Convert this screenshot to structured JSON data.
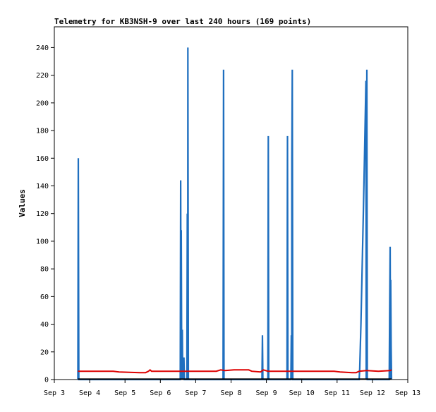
{
  "chart_data": {
    "type": "line",
    "title": "Telemetry for KB3NSH-9 over last 240 hours (169 points)",
    "xlabel": "",
    "ylabel": "Values",
    "x_tick_labels": [
      "Sep 3",
      "Sep 4",
      "Sep 5",
      "Sep 6",
      "Sep 7",
      "Sep 8",
      "Sep 9",
      "Sep 10",
      "Sep 11",
      "Sep 12",
      "Sep 13"
    ],
    "y_tick_labels": [
      "0",
      "20",
      "40",
      "60",
      "80",
      "100",
      "120",
      "140",
      "160",
      "180",
      "200",
      "220",
      "240"
    ],
    "xlim": [
      0,
      240
    ],
    "ylim": [
      0,
      255
    ],
    "grid": false,
    "legend": "none",
    "series": [
      {
        "color": "#1f6fbf",
        "style": "spikes",
        "points": [
          [
            16.0,
            0
          ],
          [
            16.3,
            160
          ],
          [
            16.6,
            0
          ],
          [
            85.5,
            0
          ],
          [
            85.8,
            144
          ],
          [
            86.1,
            0
          ],
          [
            86.2,
            108
          ],
          [
            86.5,
            0
          ],
          [
            86.9,
            36
          ],
          [
            87.2,
            0
          ],
          [
            88.0,
            16
          ],
          [
            88.3,
            0
          ],
          [
            90.0,
            0
          ],
          [
            90.3,
            120
          ],
          [
            90.6,
            0
          ],
          [
            90.7,
            240
          ],
          [
            91.0,
            0
          ],
          [
            114.6,
            0
          ],
          [
            114.9,
            224
          ],
          [
            115.2,
            0
          ],
          [
            141.0,
            0
          ],
          [
            141.3,
            32
          ],
          [
            141.6,
            0
          ],
          [
            145.0,
            0
          ],
          [
            145.3,
            176
          ],
          [
            145.6,
            0
          ],
          [
            158.0,
            0
          ],
          [
            158.3,
            176
          ],
          [
            158.6,
            0
          ],
          [
            160.6,
            0
          ],
          [
            160.9,
            32
          ],
          [
            161.2,
            0
          ],
          [
            161.3,
            160
          ],
          [
            161.6,
            224
          ],
          [
            161.9,
            0
          ],
          [
            207.0,
            0
          ],
          [
            207.4,
            8
          ],
          [
            208.2,
            40
          ],
          [
            209.0,
            80
          ],
          [
            209.8,
            120
          ],
          [
            210.6,
            160
          ],
          [
            211.3,
            200
          ],
          [
            211.6,
            216
          ],
          [
            211.8,
            0
          ],
          [
            212.0,
            112
          ],
          [
            212.2,
            224
          ],
          [
            212.5,
            0
          ],
          [
            227.4,
            0
          ],
          [
            227.7,
            48
          ],
          [
            228.0,
            96
          ],
          [
            228.3,
            0
          ],
          [
            228.4,
            72
          ],
          [
            228.7,
            24
          ],
          [
            229.0,
            0
          ]
        ]
      },
      {
        "color": "#dd0000",
        "style": "line",
        "points": [
          [
            16,
            6
          ],
          [
            40,
            6
          ],
          [
            44,
            5.5
          ],
          [
            58,
            5
          ],
          [
            62,
            5
          ],
          [
            64,
            6
          ],
          [
            65,
            7
          ],
          [
            66,
            6
          ],
          [
            110,
            6
          ],
          [
            113,
            7
          ],
          [
            116,
            6.5
          ],
          [
            122,
            7
          ],
          [
            132,
            7
          ],
          [
            134,
            6
          ],
          [
            140,
            5.5
          ],
          [
            142,
            7
          ],
          [
            145,
            6
          ],
          [
            158,
            6
          ],
          [
            190,
            6
          ],
          [
            194,
            5.5
          ],
          [
            202,
            5
          ],
          [
            205,
            5
          ],
          [
            207,
            6
          ],
          [
            212,
            6.5
          ],
          [
            220,
            6
          ],
          [
            228,
            6.5
          ],
          [
            229,
            7
          ]
        ]
      },
      {
        "color": "#000000",
        "style": "line",
        "points": [
          [
            16,
            0.3
          ],
          [
            229,
            0.3
          ]
        ]
      }
    ]
  }
}
